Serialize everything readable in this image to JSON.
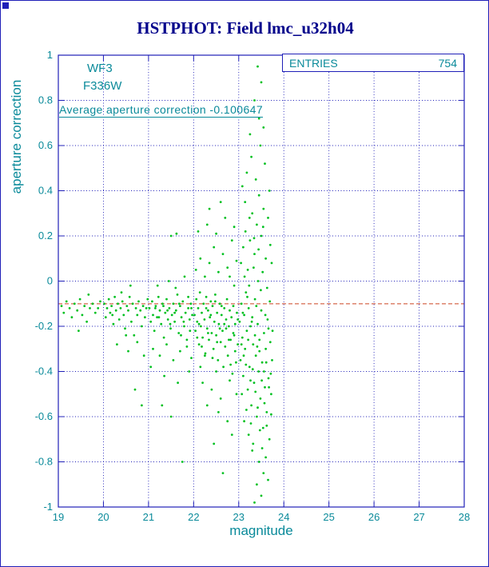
{
  "colors": {
    "title": "#00008b",
    "frame": "#2020b8",
    "grid": "#2020b8",
    "axis_text": "#0a8a9a",
    "points": "#00c020",
    "average_line": "#cc4422",
    "box_border": "#2020b8"
  },
  "chart_data": {
    "type": "scatter",
    "title": "HSTPHOT: Field lmc_u32h04",
    "xlabel": "magnitude",
    "ylabel": "aperture correction",
    "xlim": [
      19,
      28
    ],
    "ylim": [
      -1,
      1
    ],
    "xticks": [
      19,
      20,
      21,
      22,
      23,
      24,
      25,
      26,
      27,
      28
    ],
    "yticks": [
      -1,
      -0.8,
      -0.6,
      -0.4,
      -0.2,
      0,
      0.2,
      0.4,
      0.6,
      0.8,
      1
    ],
    "grid": true,
    "legend": "none",
    "stats_box": {
      "label": "ENTRIES",
      "value": 754
    },
    "annotations": {
      "detector": "WF3",
      "filter": "F336W",
      "average_text": "Average aperture correction -0.100647"
    },
    "average_value": -0.100647,
    "points": [
      [
        19.07,
        -0.11
      ],
      [
        19.12,
        -0.14
      ],
      [
        19.18,
        -0.09
      ],
      [
        19.25,
        -0.12
      ],
      [
        19.3,
        -0.16
      ],
      [
        19.36,
        -0.1
      ],
      [
        19.42,
        -0.13
      ],
      [
        19.48,
        -0.08
      ],
      [
        19.53,
        -0.15
      ],
      [
        19.58,
        -0.11
      ],
      [
        19.63,
        -0.18
      ],
      [
        19.7,
        -0.12
      ],
      [
        19.76,
        -0.1
      ],
      [
        19.82,
        -0.14
      ],
      [
        19.88,
        -0.12
      ],
      [
        19.93,
        -0.09
      ],
      [
        19.45,
        -0.22
      ],
      [
        19.67,
        -0.06
      ],
      [
        20.02,
        -0.1
      ],
      [
        20.05,
        -0.16
      ],
      [
        20.08,
        -0.12
      ],
      [
        20.12,
        -0.08
      ],
      [
        20.15,
        -0.14
      ],
      [
        20.18,
        -0.11
      ],
      [
        20.22,
        -0.19
      ],
      [
        20.25,
        -0.07
      ],
      [
        20.28,
        -0.13
      ],
      [
        20.32,
        -0.1
      ],
      [
        20.35,
        -0.17
      ],
      [
        20.38,
        -0.12
      ],
      [
        20.42,
        -0.09
      ],
      [
        20.45,
        -0.15
      ],
      [
        20.48,
        -0.21
      ],
      [
        20.52,
        -0.11
      ],
      [
        20.55,
        -0.13
      ],
      [
        20.58,
        -0.07
      ],
      [
        20.62,
        -0.18
      ],
      [
        20.65,
        -0.1
      ],
      [
        20.68,
        -0.24
      ],
      [
        20.72,
        -0.12
      ],
      [
        20.75,
        -0.15
      ],
      [
        20.78,
        -0.09
      ],
      [
        20.82,
        -0.13
      ],
      [
        20.85,
        -0.2
      ],
      [
        20.88,
        -0.11
      ],
      [
        20.92,
        -0.16
      ],
      [
        20.95,
        -0.12
      ],
      [
        20.98,
        -0.08
      ],
      [
        20.3,
        -0.28
      ],
      [
        20.55,
        -0.31
      ],
      [
        20.7,
        -0.48
      ],
      [
        20.85,
        -0.55
      ],
      [
        20.6,
        -0.02
      ],
      [
        20.4,
        -0.05
      ],
      [
        20.75,
        -0.27
      ],
      [
        20.2,
        -0.15
      ],
      [
        20.9,
        -0.33
      ],
      [
        20.5,
        -0.24
      ],
      [
        21.02,
        -0.12
      ],
      [
        21.05,
        -0.18
      ],
      [
        21.08,
        -0.09
      ],
      [
        21.1,
        -0.15
      ],
      [
        21.13,
        -0.22
      ],
      [
        21.16,
        -0.11
      ],
      [
        21.19,
        -0.16
      ],
      [
        21.22,
        -0.07
      ],
      [
        21.25,
        -0.13
      ],
      [
        21.28,
        -0.19
      ],
      [
        21.31,
        -0.1
      ],
      [
        21.34,
        -0.25
      ],
      [
        21.37,
        -0.14
      ],
      [
        21.4,
        -0.08
      ],
      [
        21.43,
        -0.17
      ],
      [
        21.46,
        -0.12
      ],
      [
        21.49,
        -0.21
      ],
      [
        21.52,
        -0.15
      ],
      [
        21.55,
        -0.1
      ],
      [
        21.58,
        -0.18
      ],
      [
        21.61,
        -0.13
      ],
      [
        21.64,
        -0.06
      ],
      [
        21.67,
        -0.23
      ],
      [
        21.7,
        -0.11
      ],
      [
        21.73,
        -0.16
      ],
      [
        21.76,
        -0.09
      ],
      [
        21.79,
        -0.2
      ],
      [
        21.82,
        -0.14
      ],
      [
        21.85,
        -0.26
      ],
      [
        21.88,
        -0.12
      ],
      [
        21.91,
        -0.17
      ],
      [
        21.94,
        -0.1
      ],
      [
        21.97,
        -0.15
      ],
      [
        21.1,
        -0.3
      ],
      [
        21.25,
        -0.33
      ],
      [
        21.4,
        -0.28
      ],
      [
        21.55,
        -0.35
      ],
      [
        21.7,
        -0.31
      ],
      [
        21.85,
        -0.29
      ],
      [
        21.95,
        -0.34
      ],
      [
        21.2,
        -0.02
      ],
      [
        21.45,
        0.0
      ],
      [
        21.6,
        -0.03
      ],
      [
        21.8,
        0.02
      ],
      [
        21.35,
        -0.42
      ],
      [
        21.65,
        -0.45
      ],
      [
        21.9,
        -0.4
      ],
      [
        21.5,
        -0.6
      ],
      [
        21.75,
        -0.8
      ],
      [
        21.3,
        -0.55
      ],
      [
        21.05,
        -0.38
      ],
      [
        21.5,
        0.2
      ],
      [
        21.62,
        0.21
      ],
      [
        21.15,
        -0.12
      ],
      [
        21.48,
        -0.19
      ],
      [
        21.72,
        -0.24
      ],
      [
        21.88,
        -0.07
      ],
      [
        21.33,
        -0.11
      ],
      [
        21.58,
        -0.14
      ],
      [
        21.78,
        -0.18
      ],
      [
        21.92,
        -0.22
      ],
      [
        21.23,
        -0.16
      ],
      [
        21.42,
        -0.13
      ],
      [
        21.68,
        -0.1
      ],
      [
        21.95,
        -0.12
      ],
      [
        22.02,
        -0.15
      ],
      [
        22.04,
        -0.22
      ],
      [
        22.06,
        -0.08
      ],
      [
        22.08,
        -0.18
      ],
      [
        22.1,
        -0.12
      ],
      [
        22.12,
        -0.28
      ],
      [
        22.14,
        -0.05
      ],
      [
        22.16,
        -0.2
      ],
      [
        22.18,
        -0.14
      ],
      [
        22.2,
        -0.25
      ],
      [
        22.22,
        -0.1
      ],
      [
        22.24,
        -0.17
      ],
      [
        22.26,
        -0.32
      ],
      [
        22.28,
        -0.07
      ],
      [
        22.3,
        -0.21
      ],
      [
        22.32,
        -0.13
      ],
      [
        22.34,
        -0.26
      ],
      [
        22.36,
        -0.16
      ],
      [
        22.38,
        -0.09
      ],
      [
        22.4,
        -0.23
      ],
      [
        22.42,
        -0.11
      ],
      [
        22.44,
        -0.3
      ],
      [
        22.46,
        -0.18
      ],
      [
        22.48,
        -0.06
      ],
      [
        22.5,
        -0.24
      ],
      [
        22.52,
        -0.14
      ],
      [
        22.54,
        -0.35
      ],
      [
        22.56,
        -0.19
      ],
      [
        22.58,
        -0.1
      ],
      [
        22.6,
        -0.27
      ],
      [
        22.62,
        -0.15
      ],
      [
        22.64,
        -0.22
      ],
      [
        22.66,
        -0.38
      ],
      [
        22.68,
        -0.12
      ],
      [
        22.7,
        -0.29
      ],
      [
        22.72,
        -0.17
      ],
      [
        22.74,
        -0.08
      ],
      [
        22.76,
        -0.33
      ],
      [
        22.78,
        -0.2
      ],
      [
        22.8,
        -0.13
      ],
      [
        22.82,
        -0.26
      ],
      [
        22.84,
        -0.16
      ],
      [
        22.86,
        -0.41
      ],
      [
        22.88,
        -0.11
      ],
      [
        22.9,
        -0.24
      ],
      [
        22.92,
        -0.19
      ],
      [
        22.94,
        -0.36
      ],
      [
        22.96,
        -0.14
      ],
      [
        22.98,
        -0.28
      ],
      [
        22.05,
        0.05
      ],
      [
        22.15,
        0.1
      ],
      [
        22.25,
        0.02
      ],
      [
        22.35,
        0.08
      ],
      [
        22.45,
        0.15
      ],
      [
        22.55,
        0.04
      ],
      [
        22.65,
        0.12
      ],
      [
        22.75,
        0.06
      ],
      [
        22.85,
        0.18
      ],
      [
        22.95,
        0.09
      ],
      [
        22.1,
        0.22
      ],
      [
        22.3,
        0.25
      ],
      [
        22.5,
        0.21
      ],
      [
        22.7,
        0.28
      ],
      [
        22.9,
        0.24
      ],
      [
        22.2,
        -0.45
      ],
      [
        22.4,
        -0.48
      ],
      [
        22.6,
        -0.52
      ],
      [
        22.8,
        -0.44
      ],
      [
        22.95,
        -0.5
      ],
      [
        22.3,
        -0.55
      ],
      [
        22.55,
        -0.58
      ],
      [
        22.75,
        -0.62
      ],
      [
        22.15,
        -0.38
      ],
      [
        22.85,
        -0.68
      ],
      [
        22.45,
        -0.72
      ],
      [
        22.65,
        -0.85
      ],
      [
        22.25,
        -0.33
      ],
      [
        22.5,
        -0.4
      ],
      [
        22.35,
        0.32
      ],
      [
        22.6,
        0.35
      ],
      [
        22.8,
        0.02
      ],
      [
        22.9,
        -0.02
      ],
      [
        22.12,
        -0.19
      ],
      [
        22.32,
        -0.23
      ],
      [
        22.52,
        -0.27
      ],
      [
        22.72,
        -0.21
      ],
      [
        22.92,
        -0.31
      ],
      [
        22.08,
        -0.25
      ],
      [
        22.28,
        -0.12
      ],
      [
        22.48,
        -0.09
      ],
      [
        22.68,
        -0.19
      ],
      [
        22.88,
        -0.23
      ],
      [
        22.18,
        -0.29
      ],
      [
        22.38,
        -0.15
      ],
      [
        22.58,
        -0.21
      ],
      [
        22.78,
        -0.26
      ],
      [
        22.98,
        -0.17
      ],
      [
        22.42,
        -0.34
      ],
      [
        22.62,
        -0.11
      ],
      [
        22.82,
        -0.37
      ],
      [
        23.02,
        -0.18
      ],
      [
        23.04,
        -0.35
      ],
      [
        23.06,
        -0.1
      ],
      [
        23.08,
        -0.25
      ],
      [
        23.1,
        -0.42
      ],
      [
        23.12,
        -0.15
      ],
      [
        23.14,
        -0.3
      ],
      [
        23.16,
        -0.05
      ],
      [
        23.18,
        -0.22
      ],
      [
        23.2,
        -0.48
      ],
      [
        23.22,
        -0.12
      ],
      [
        23.24,
        -0.38
      ],
      [
        23.26,
        -0.2
      ],
      [
        23.28,
        -0.55
      ],
      [
        23.3,
        -0.16
      ],
      [
        23.32,
        -0.28
      ],
      [
        23.34,
        -0.45
      ],
      [
        23.36,
        -0.08
      ],
      [
        23.38,
        -0.33
      ],
      [
        23.4,
        -0.6
      ],
      [
        23.42,
        -0.19
      ],
      [
        23.44,
        -0.4
      ],
      [
        23.46,
        -0.26
      ],
      [
        23.48,
        -0.52
      ],
      [
        23.5,
        -0.13
      ],
      [
        23.52,
        -0.36
      ],
      [
        23.54,
        -0.65
      ],
      [
        23.56,
        -0.23
      ],
      [
        23.58,
        -0.47
      ],
      [
        23.6,
        -0.3
      ],
      [
        23.62,
        -0.58
      ],
      [
        23.64,
        -0.17
      ],
      [
        23.66,
        -0.43
      ],
      [
        23.68,
        -0.7
      ],
      [
        23.7,
        -0.27
      ],
      [
        23.72,
        -0.5
      ],
      [
        23.05,
        0.08
      ],
      [
        23.1,
        0.15
      ],
      [
        23.15,
        0.22
      ],
      [
        23.2,
        0.05
      ],
      [
        23.25,
        0.18
      ],
      [
        23.3,
        0.3
      ],
      [
        23.35,
        0.12
      ],
      [
        23.4,
        0.25
      ],
      [
        23.45,
        0.38
      ],
      [
        23.5,
        0.2
      ],
      [
        23.55,
        0.32
      ],
      [
        23.6,
        0.1
      ],
      [
        23.65,
        0.28
      ],
      [
        23.7,
        0.16
      ],
      [
        23.08,
        0.42
      ],
      [
        23.18,
        0.48
      ],
      [
        23.28,
        0.55
      ],
      [
        23.38,
        0.45
      ],
      [
        23.48,
        0.6
      ],
      [
        23.58,
        0.52
      ],
      [
        23.68,
        0.4
      ],
      [
        23.25,
        0.65
      ],
      [
        23.45,
        0.72
      ],
      [
        23.55,
        0.68
      ],
      [
        23.35,
        0.8
      ],
      [
        23.5,
        0.88
      ],
      [
        23.42,
        0.95
      ],
      [
        23.3,
        -0.75
      ],
      [
        23.45,
        -0.8
      ],
      [
        23.55,
        -0.85
      ],
      [
        23.4,
        -0.9
      ],
      [
        23.6,
        -0.78
      ],
      [
        23.5,
        -0.95
      ],
      [
        23.35,
        -0.98
      ],
      [
        23.65,
        -0.88
      ],
      [
        23.12,
        -0.62
      ],
      [
        23.22,
        -0.68
      ],
      [
        23.32,
        -0.72
      ],
      [
        23.42,
        -0.56
      ],
      [
        23.52,
        -0.74
      ],
      [
        23.62,
        -0.64
      ],
      [
        23.72,
        -0.59
      ],
      [
        23.06,
        -0.28
      ],
      [
        23.16,
        -0.37
      ],
      [
        23.26,
        -0.44
      ],
      [
        23.36,
        -0.24
      ],
      [
        23.46,
        -0.31
      ],
      [
        23.56,
        -0.4
      ],
      [
        23.66,
        -0.21
      ],
      [
        23.74,
        -0.35
      ],
      [
        23.09,
        -0.14
      ],
      [
        23.19,
        -0.07
      ],
      [
        23.29,
        -0.18
      ],
      [
        23.39,
        -0.11
      ],
      [
        23.49,
        -0.04
      ],
      [
        23.59,
        -0.15
      ],
      [
        23.69,
        -0.09
      ],
      [
        23.75,
        -0.22
      ],
      [
        23.13,
        0.02
      ],
      [
        23.23,
        -0.02
      ],
      [
        23.33,
        0.06
      ],
      [
        23.43,
        0.0
      ],
      [
        23.53,
        0.04
      ],
      [
        23.63,
        -0.03
      ],
      [
        23.73,
        0.08
      ],
      [
        23.07,
        -0.5
      ],
      [
        23.17,
        -0.57
      ],
      [
        23.27,
        -0.63
      ],
      [
        23.37,
        -0.49
      ],
      [
        23.47,
        -0.66
      ],
      [
        23.57,
        -0.54
      ],
      [
        23.67,
        -0.47
      ],
      [
        23.11,
        -0.33
      ],
      [
        23.21,
        -0.26
      ],
      [
        23.31,
        -0.39
      ],
      [
        23.41,
        -0.29
      ],
      [
        23.51,
        -0.44
      ],
      [
        23.61,
        -0.36
      ],
      [
        23.71,
        -0.41
      ],
      [
        23.14,
        0.35
      ],
      [
        23.24,
        0.28
      ],
      [
        23.34,
        0.19
      ],
      [
        23.44,
        0.14
      ],
      [
        23.54,
        0.24
      ]
    ]
  }
}
